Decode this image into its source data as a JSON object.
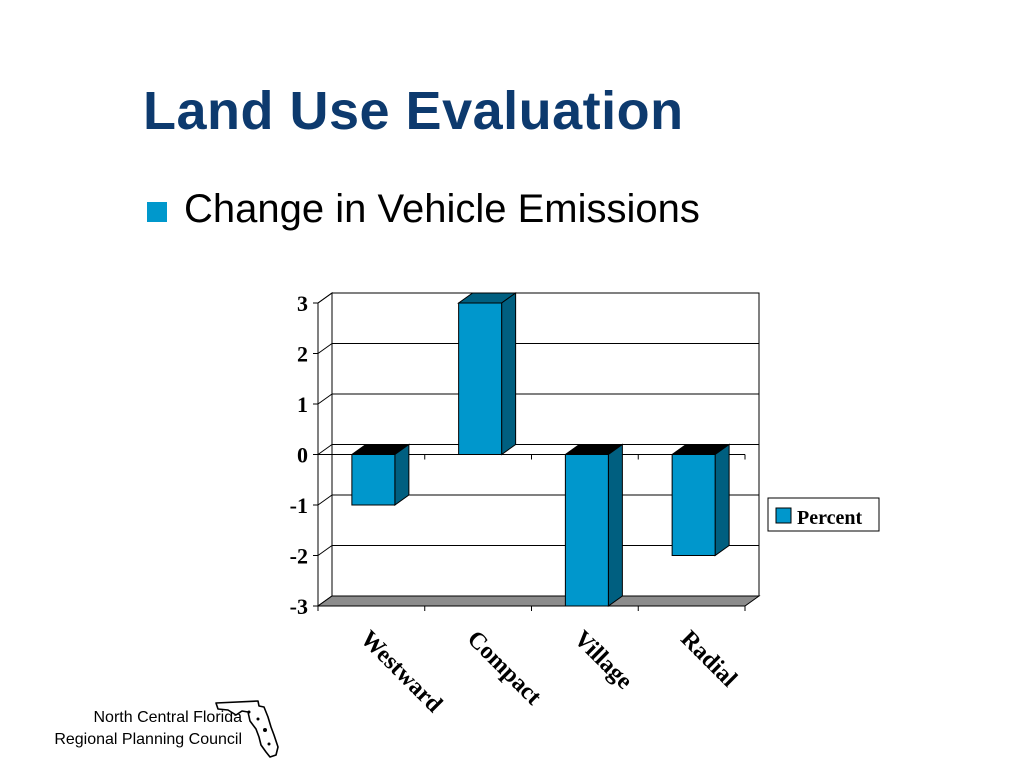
{
  "slide": {
    "title": "Land Use Evaluation",
    "bullet": "Change in Vehicle Emissions",
    "footer_line1": "North Central Florida",
    "footer_line2": "Regional Planning Council",
    "logo_icon": "florida-map-icon"
  },
  "colors": {
    "title": "#0d3a6e",
    "bullet": "#0098cc",
    "bar_front": "#0097cc",
    "bar_side": "#005f80",
    "bar_top": "#000000",
    "floor": "#8c8c8c"
  },
  "chart_data": {
    "type": "bar",
    "style": "3d-column",
    "categories": [
      "Westward",
      "Compact",
      "Village",
      "Radial"
    ],
    "series": [
      {
        "name": "Percent",
        "values": [
          -1,
          3,
          -3,
          -2
        ]
      }
    ],
    "ylim": [
      -3,
      3
    ],
    "yticks": [
      "3",
      "2",
      "1",
      "0",
      "-1",
      "-2",
      "-3"
    ],
    "grid": true,
    "legend_position": "right"
  }
}
